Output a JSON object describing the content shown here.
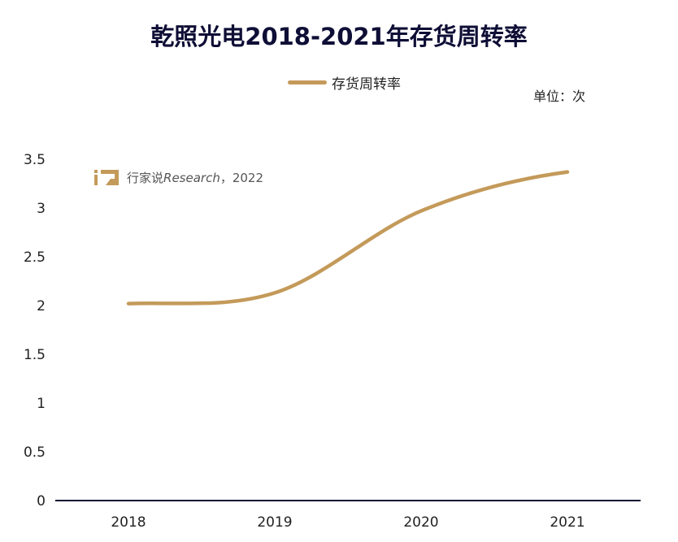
{
  "chart_data": {
    "type": "line",
    "title": "乾照光电2018-2021年存货周转率",
    "unit_label": "单位：次",
    "categories": [
      "2018",
      "2019",
      "2020",
      "2021"
    ],
    "series": [
      {
        "name": "存货周转率",
        "values": [
          2.02,
          2.13,
          2.97,
          3.37
        ],
        "color": "#c49a5a"
      }
    ],
    "ylim": [
      0,
      3.5
    ],
    "yticks": [
      "0",
      "0.5",
      "1",
      "1.5",
      "2",
      "2.5",
      "3",
      "3.5"
    ],
    "grid": false,
    "legend_position": "top-center",
    "watermark": {
      "brand": "行家说",
      "italic": "Research",
      "suffix": "，2022",
      "logo_icon": "hangjiashuo-logo-icon",
      "logo_color": "#c49a5a"
    },
    "axis_color": "#0e0e36"
  }
}
